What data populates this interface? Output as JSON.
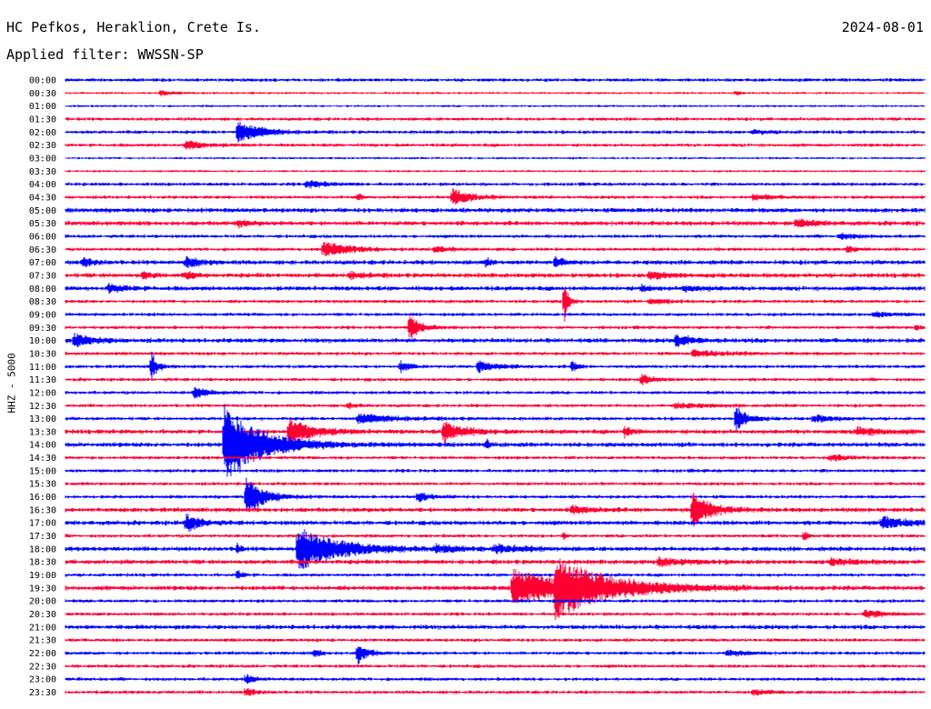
{
  "header": {
    "station": "HC Pefkos, Heraklion, Crete Is.",
    "date": "2024-08-01",
    "filter": "Applied filter: WWSSN-SP"
  },
  "chart_data": {
    "type": "line",
    "title": "HC Pefkos, Heraklion, Crete Is.",
    "ylabel": "HHZ - 5000",
    "colors": {
      "even_rows": "#0000ff",
      "odd_rows": "#ff0033"
    },
    "rows": [
      "00:00",
      "00:30",
      "01:00",
      "01:30",
      "02:00",
      "02:30",
      "03:00",
      "03:30",
      "04:00",
      "04:30",
      "05:00",
      "05:30",
      "06:00",
      "06:30",
      "07:00",
      "07:30",
      "08:00",
      "08:30",
      "09:00",
      "09:30",
      "10:00",
      "10:30",
      "11:00",
      "11:30",
      "12:00",
      "12:30",
      "13:00",
      "13:30",
      "14:00",
      "14:30",
      "15:00",
      "15:30",
      "16:00",
      "16:30",
      "17:00",
      "17:30",
      "18:00",
      "18:30",
      "19:00",
      "19:30",
      "20:00",
      "20:30",
      "21:00",
      "21:30",
      "22:00",
      "22:30",
      "23:00",
      "23:30"
    ],
    "noise": [
      1.5,
      1,
      1,
      1.5,
      1.5,
      1.5,
      1,
      1,
      1.5,
      1.5,
      2,
      2,
      1.5,
      1.5,
      2,
      2,
      2,
      1.5,
      1.5,
      1.5,
      2,
      1.5,
      1.5,
      1.5,
      1.5,
      1.5,
      1.5,
      2,
      2,
      1.5,
      1.5,
      1.5,
      1.5,
      2,
      2,
      1.5,
      2,
      2,
      1.5,
      2,
      1.5,
      1.5,
      2,
      1.5,
      1.5,
      1.5,
      1.5,
      1.5
    ],
    "events": [
      {
        "row": 1,
        "x": 0.11,
        "amp": 3,
        "dur": 0.015
      },
      {
        "row": 1,
        "x": 0.78,
        "amp": 3,
        "dur": 0.005
      },
      {
        "row": 4,
        "x": 0.2,
        "amp": 12,
        "dur": 0.025
      },
      {
        "row": 4,
        "x": 0.8,
        "amp": 2,
        "dur": 0.02
      },
      {
        "row": 5,
        "x": 0.14,
        "amp": 5,
        "dur": 0.02
      },
      {
        "row": 8,
        "x": 0.28,
        "amp": 4,
        "dur": 0.02
      },
      {
        "row": 9,
        "x": 0.34,
        "amp": 4,
        "dur": 0.006
      },
      {
        "row": 9,
        "x": 0.45,
        "amp": 9,
        "dur": 0.02
      },
      {
        "row": 9,
        "x": 0.8,
        "amp": 3,
        "dur": 0.02
      },
      {
        "row": 11,
        "x": 0.2,
        "amp": 4,
        "dur": 0.01
      },
      {
        "row": 11,
        "x": 0.85,
        "amp": 4,
        "dur": 0.02
      },
      {
        "row": 12,
        "x": 0.9,
        "amp": 3,
        "dur": 0.02
      },
      {
        "row": 13,
        "x": 0.3,
        "amp": 8,
        "dur": 0.03
      },
      {
        "row": 13,
        "x": 0.43,
        "amp": 3,
        "dur": 0.02
      },
      {
        "row": 13,
        "x": 0.91,
        "amp": 4,
        "dur": 0.008
      },
      {
        "row": 14,
        "x": 0.02,
        "amp": 6,
        "dur": 0.01
      },
      {
        "row": 14,
        "x": 0.14,
        "amp": 6,
        "dur": 0.015
      },
      {
        "row": 14,
        "x": 0.57,
        "amp": 6,
        "dur": 0.01
      },
      {
        "row": 14,
        "x": 0.49,
        "amp": 8,
        "dur": 0.003
      },
      {
        "row": 15,
        "x": 0.09,
        "amp": 4,
        "dur": 0.01
      },
      {
        "row": 15,
        "x": 0.14,
        "amp": 4,
        "dur": 0.01
      },
      {
        "row": 15,
        "x": 0.33,
        "amp": 3,
        "dur": 0.02
      },
      {
        "row": 15,
        "x": 0.68,
        "amp": 4,
        "dur": 0.02
      },
      {
        "row": 16,
        "x": 0.05,
        "amp": 4,
        "dur": 0.02
      },
      {
        "row": 16,
        "x": 0.67,
        "amp": 3,
        "dur": 0.01
      },
      {
        "row": 16,
        "x": 0.72,
        "amp": 3,
        "dur": 0.02
      },
      {
        "row": 17,
        "x": 0.58,
        "amp": 27,
        "dur": 0.004
      },
      {
        "row": 17,
        "x": 0.68,
        "amp": 3,
        "dur": 0.02
      },
      {
        "row": 18,
        "x": 0.94,
        "amp": 3,
        "dur": 0.02
      },
      {
        "row": 19,
        "x": 0.4,
        "amp": 14,
        "dur": 0.012
      },
      {
        "row": 19,
        "x": 0.99,
        "amp": 4,
        "dur": 0.005
      },
      {
        "row": 20,
        "x": 0.01,
        "amp": 7,
        "dur": 0.02
      },
      {
        "row": 20,
        "x": 0.71,
        "amp": 6,
        "dur": 0.02
      },
      {
        "row": 21,
        "x": 0.73,
        "amp": 3,
        "dur": 0.04
      },
      {
        "row": 22,
        "x": 0.1,
        "amp": 17,
        "dur": 0.006
      },
      {
        "row": 22,
        "x": 0.39,
        "amp": 6,
        "dur": 0.01
      },
      {
        "row": 22,
        "x": 0.48,
        "amp": 6,
        "dur": 0.02
      },
      {
        "row": 22,
        "x": 0.59,
        "amp": 7,
        "dur": 0.005
      },
      {
        "row": 23,
        "x": 0.67,
        "amp": 7,
        "dur": 0.01
      },
      {
        "row": 24,
        "x": 0.15,
        "amp": 6,
        "dur": 0.015
      },
      {
        "row": 25,
        "x": 0.33,
        "amp": 3,
        "dur": 0.008
      },
      {
        "row": 25,
        "x": 0.71,
        "amp": 3,
        "dur": 0.03
      },
      {
        "row": 26,
        "x": 0.34,
        "amp": 5,
        "dur": 0.04
      },
      {
        "row": 26,
        "x": 0.78,
        "amp": 15,
        "dur": 0.012
      },
      {
        "row": 26,
        "x": 0.87,
        "amp": 4,
        "dur": 0.02
      },
      {
        "row": 27,
        "x": 0.26,
        "amp": 15,
        "dur": 0.025
      },
      {
        "row": 27,
        "x": 0.44,
        "amp": 12,
        "dur": 0.02
      },
      {
        "row": 27,
        "x": 0.65,
        "amp": 6,
        "dur": 0.008
      },
      {
        "row": 27,
        "x": 0.92,
        "amp": 4,
        "dur": 0.03
      },
      {
        "row": 28,
        "x": 0.185,
        "amp": 45,
        "dur": 0.04
      },
      {
        "row": 28,
        "x": 0.49,
        "amp": 6,
        "dur": 0.003
      },
      {
        "row": 29,
        "x": 0.89,
        "amp": 3,
        "dur": 0.02
      },
      {
        "row": 32,
        "x": 0.21,
        "amp": 20,
        "dur": 0.02
      },
      {
        "row": 32,
        "x": 0.41,
        "amp": 5,
        "dur": 0.015
      },
      {
        "row": 33,
        "x": 0.73,
        "amp": 18,
        "dur": 0.02
      },
      {
        "row": 33,
        "x": 0.59,
        "amp": 4,
        "dur": 0.02
      },
      {
        "row": 34,
        "x": 0.14,
        "amp": 10,
        "dur": 0.015
      },
      {
        "row": 34,
        "x": 0.95,
        "amp": 6,
        "dur": 0.03
      },
      {
        "row": 35,
        "x": 0.58,
        "amp": 5,
        "dur": 0.003
      },
      {
        "row": 35,
        "x": 0.86,
        "amp": 6,
        "dur": 0.003
      },
      {
        "row": 36,
        "x": 0.27,
        "amp": 24,
        "dur": 0.045
      },
      {
        "row": 36,
        "x": 0.2,
        "amp": 7,
        "dur": 0.003
      },
      {
        "row": 36,
        "x": 0.43,
        "amp": 4,
        "dur": 0.02
      },
      {
        "row": 36,
        "x": 0.5,
        "amp": 4,
        "dur": 0.03
      },
      {
        "row": 37,
        "x": 0.69,
        "amp": 4,
        "dur": 0.03
      },
      {
        "row": 37,
        "x": 0.89,
        "amp": 3,
        "dur": 0.03
      },
      {
        "row": 38,
        "x": 0.2,
        "amp": 6,
        "dur": 0.005
      },
      {
        "row": 39,
        "x": 0.52,
        "amp": 20,
        "dur": 0.06
      },
      {
        "row": 39,
        "x": 0.57,
        "amp": 25,
        "dur": 0.06
      },
      {
        "row": 41,
        "x": 0.93,
        "amp": 4,
        "dur": 0.02
      },
      {
        "row": 44,
        "x": 0.29,
        "amp": 6,
        "dur": 0.006
      },
      {
        "row": 44,
        "x": 0.34,
        "amp": 12,
        "dur": 0.01
      },
      {
        "row": 44,
        "x": 0.77,
        "amp": 3,
        "dur": 0.02
      },
      {
        "row": 46,
        "x": 0.21,
        "amp": 5,
        "dur": 0.01
      },
      {
        "row": 47,
        "x": 0.21,
        "amp": 5,
        "dur": 0.01
      },
      {
        "row": 47,
        "x": 0.8,
        "amp": 3,
        "dur": 0.02
      }
    ]
  }
}
